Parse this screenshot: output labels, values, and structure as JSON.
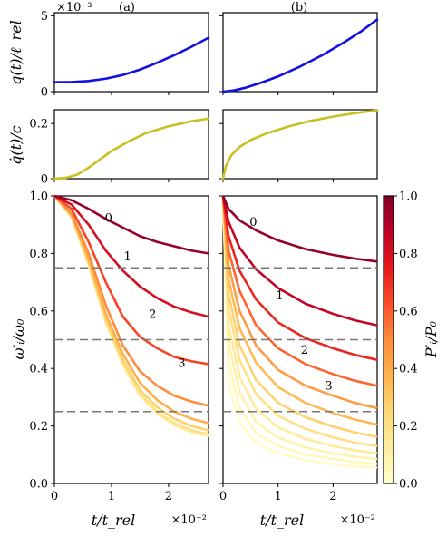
{
  "chart_data": [
    {
      "id": "q_a",
      "type": "line",
      "panel_label": "(a)",
      "ylabel": "q(t)/ℓ_rel",
      "offset_text": "×10⁻³",
      "xlim": [
        0,
        2.7
      ],
      "ylim": [
        0,
        5.2
      ],
      "yticks": [
        0,
        5
      ],
      "yticklabels": [
        "0",
        "5"
      ],
      "series": [
        {
          "color": "#1010e0",
          "x": [
            0,
            0.3,
            0.6,
            0.9,
            1.2,
            1.5,
            1.8,
            2.1,
            2.4,
            2.7
          ],
          "y": [
            0.62,
            0.63,
            0.7,
            0.85,
            1.1,
            1.45,
            1.9,
            2.4,
            2.95,
            3.55
          ]
        }
      ]
    },
    {
      "id": "q_b",
      "type": "line",
      "panel_label": "(b)",
      "xlim": [
        0,
        2.8
      ],
      "ylim": [
        0,
        5.2
      ],
      "series": [
        {
          "color": "#1010e0",
          "x": [
            0,
            0.2,
            0.4,
            0.7,
            1.0,
            1.4,
            1.8,
            2.2,
            2.5,
            2.8
          ],
          "y": [
            0,
            0.08,
            0.25,
            0.6,
            1.0,
            1.65,
            2.4,
            3.25,
            3.95,
            4.75
          ]
        }
      ]
    },
    {
      "id": "qd_a",
      "type": "line",
      "ylabel": "q̇(t)/c",
      "xlim": [
        0,
        2.7
      ],
      "ylim": [
        0,
        0.25
      ],
      "yticks": [
        0,
        0.2
      ],
      "yticklabels": [
        "0",
        "0.2"
      ],
      "series": [
        {
          "color": "#c8c020",
          "x": [
            0,
            0.2,
            0.4,
            0.6,
            0.8,
            1.0,
            1.3,
            1.6,
            2.0,
            2.4,
            2.7
          ],
          "y": [
            0,
            0.003,
            0.015,
            0.04,
            0.07,
            0.1,
            0.135,
            0.165,
            0.19,
            0.208,
            0.218
          ]
        }
      ]
    },
    {
      "id": "qd_b",
      "type": "line",
      "xlim": [
        0,
        2.8
      ],
      "ylim": [
        0,
        0.25
      ],
      "series": [
        {
          "color": "#c8c020",
          "x": [
            0,
            0.05,
            0.15,
            0.3,
            0.5,
            0.8,
            1.2,
            1.6,
            2.0,
            2.4,
            2.8
          ],
          "y": [
            0,
            0.045,
            0.085,
            0.115,
            0.14,
            0.165,
            0.19,
            0.21,
            0.225,
            0.238,
            0.248
          ]
        }
      ]
    },
    {
      "id": "om_a",
      "type": "line",
      "ylabel": "ω′ᵢ/ω₀",
      "xlabel": "t/t_rel",
      "offset_text": "×10⁻²",
      "xlim": [
        0,
        2.7
      ],
      "ylim": [
        0,
        1
      ],
      "xticks": [
        0,
        1,
        2
      ],
      "xticklabels": [
        "0",
        "1",
        "2"
      ],
      "yticks": [
        0,
        0.2,
        0.4,
        0.6,
        0.8,
        1.0
      ],
      "yticklabels": [
        "0.0",
        "0.2",
        "0.4",
        "0.6",
        "0.8",
        "1.0"
      ],
      "hlines": [
        0.75,
        0.5,
        0.25
      ],
      "x": [
        0,
        0.3,
        0.6,
        0.9,
        1.2,
        1.5,
        1.8,
        2.1,
        2.4,
        2.7
      ],
      "series": [
        {
          "P": 0.95,
          "y": [
            1.0,
            0.985,
            0.955,
            0.92,
            0.89,
            0.86,
            0.84,
            0.825,
            0.81,
            0.8
          ]
        },
        {
          "P": 0.8,
          "y": [
            1.0,
            0.97,
            0.9,
            0.81,
            0.74,
            0.685,
            0.645,
            0.615,
            0.595,
            0.58
          ]
        },
        {
          "P": 0.65,
          "y": [
            1.0,
            0.955,
            0.84,
            0.7,
            0.58,
            0.51,
            0.47,
            0.44,
            0.425,
            0.415
          ]
        },
        {
          "P": 0.5,
          "y": [
            1.0,
            0.94,
            0.8,
            0.62,
            0.48,
            0.39,
            0.34,
            0.305,
            0.285,
            0.27
          ]
        },
        {
          "P": 0.38,
          "y": [
            1.0,
            0.935,
            0.78,
            0.59,
            0.45,
            0.35,
            0.29,
            0.25,
            0.225,
            0.21
          ]
        },
        {
          "P": 0.28,
          "y": [
            1.0,
            0.93,
            0.77,
            0.575,
            0.43,
            0.325,
            0.265,
            0.225,
            0.2,
            0.185
          ]
        },
        {
          "P": 0.2,
          "y": [
            1.0,
            0.928,
            0.765,
            0.565,
            0.42,
            0.312,
            0.25,
            0.21,
            0.185,
            0.172
          ]
        },
        {
          "P": 0.12,
          "y": [
            1.0,
            0.926,
            0.76,
            0.56,
            0.412,
            0.305,
            0.243,
            0.203,
            0.178,
            0.165
          ]
        }
      ],
      "annotations": [
        {
          "text": "0",
          "x": 0.95,
          "y": 0.925
        },
        {
          "text": "1",
          "x": 1.28,
          "y": 0.79
        },
        {
          "text": "2",
          "x": 1.72,
          "y": 0.59
        },
        {
          "text": "3",
          "x": 2.23,
          "y": 0.42
        }
      ]
    },
    {
      "id": "om_b",
      "type": "line",
      "xlabel": "t/t_rel",
      "offset_text": "×10⁻²",
      "xlim": [
        0,
        2.8
      ],
      "ylim": [
        0,
        1
      ],
      "xticks": [
        0,
        1,
        2
      ],
      "xticklabels": [
        "0",
        "1",
        "2"
      ],
      "hlines": [
        0.75,
        0.5,
        0.25
      ],
      "x": [
        0,
        0.1,
        0.3,
        0.6,
        1.0,
        1.5,
        2.0,
        2.4,
        2.8
      ],
      "series": [
        {
          "P": 0.95,
          "y": [
            1.0,
            0.955,
            0.915,
            0.88,
            0.845,
            0.815,
            0.795,
            0.782,
            0.772
          ]
        },
        {
          "P": 0.85,
          "y": [
            1.0,
            0.91,
            0.82,
            0.745,
            0.68,
            0.625,
            0.59,
            0.567,
            0.55
          ]
        },
        {
          "P": 0.72,
          "y": [
            1.0,
            0.86,
            0.74,
            0.64,
            0.56,
            0.505,
            0.47,
            0.447,
            0.43
          ]
        },
        {
          "P": 0.58,
          "y": [
            1.0,
            0.81,
            0.67,
            0.55,
            0.47,
            0.415,
            0.38,
            0.357,
            0.34
          ]
        },
        {
          "P": 0.45,
          "y": [
            1.0,
            0.76,
            0.6,
            0.48,
            0.395,
            0.34,
            0.305,
            0.28,
            0.262
          ]
        },
        {
          "P": 0.35,
          "y": [
            1.0,
            0.71,
            0.54,
            0.42,
            0.335,
            0.28,
            0.245,
            0.222,
            0.205
          ]
        },
        {
          "P": 0.27,
          "y": [
            1.0,
            0.66,
            0.48,
            0.36,
            0.28,
            0.23,
            0.198,
            0.177,
            0.162
          ]
        },
        {
          "P": 0.2,
          "y": [
            1.0,
            0.61,
            0.43,
            0.31,
            0.235,
            0.19,
            0.16,
            0.142,
            0.13
          ]
        },
        {
          "P": 0.14,
          "y": [
            1.0,
            0.55,
            0.37,
            0.26,
            0.195,
            0.155,
            0.13,
            0.115,
            0.105
          ]
        },
        {
          "P": 0.09,
          "y": [
            1.0,
            0.49,
            0.315,
            0.215,
            0.16,
            0.125,
            0.105,
            0.093,
            0.085
          ]
        },
        {
          "P": 0.05,
          "y": [
            1.0,
            0.42,
            0.26,
            0.175,
            0.13,
            0.1,
            0.085,
            0.075,
            0.068
          ]
        },
        {
          "P": 0.02,
          "y": [
            1.0,
            0.35,
            0.21,
            0.14,
            0.105,
            0.08,
            0.068,
            0.06,
            0.055
          ]
        }
      ],
      "annotations": [
        {
          "text": "0",
          "x": 0.55,
          "y": 0.91
        },
        {
          "text": "1",
          "x": 1.03,
          "y": 0.655
        },
        {
          "text": "2",
          "x": 1.48,
          "y": 0.465
        },
        {
          "text": "3",
          "x": 1.92,
          "y": 0.34
        }
      ]
    },
    {
      "id": "colorbar",
      "type": "colorbar",
      "label": "P′ᵢ/P₀",
      "range": [
        0,
        1
      ],
      "ticks": [
        0,
        0.2,
        0.4,
        0.6,
        0.8,
        1.0
      ],
      "ticklabels": [
        "0.0",
        "0.2",
        "0.4",
        "0.6",
        "0.8",
        "1.0"
      ],
      "colormap": [
        "#ffffcc",
        "#feeda0",
        "#fed976",
        "#feb24c",
        "#fd8d3c",
        "#fc4e2a",
        "#e31a1c",
        "#bd0026",
        "#800026"
      ]
    }
  ]
}
